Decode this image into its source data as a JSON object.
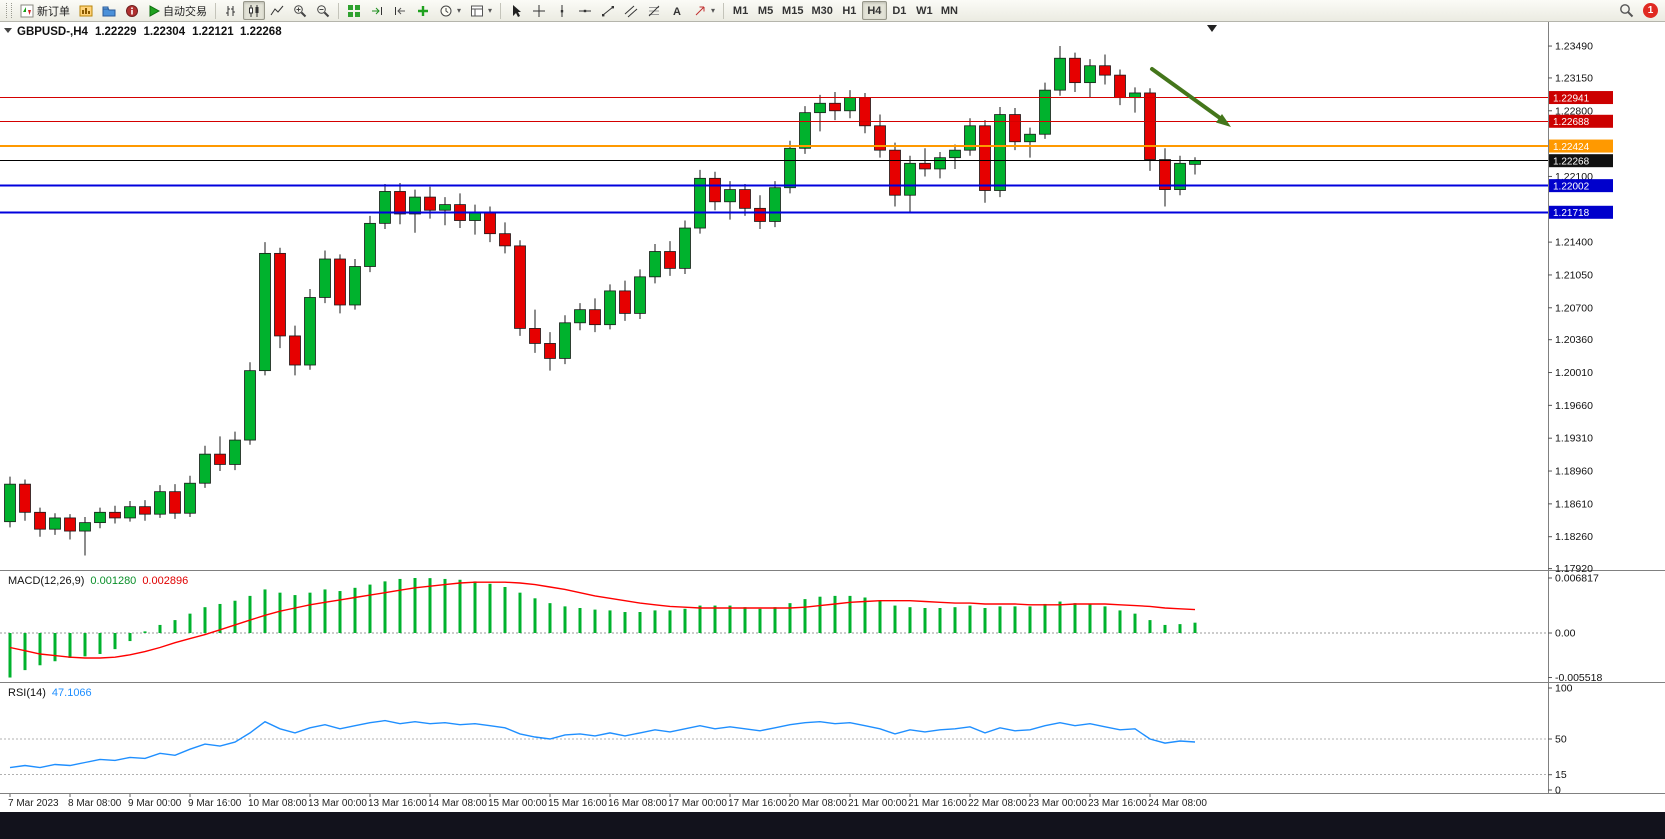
{
  "toolbar": {
    "new_order_label": "新订单",
    "autotrading_label": "自动交易",
    "timeframes": [
      "M1",
      "M5",
      "M15",
      "M30",
      "H1",
      "H4",
      "D1",
      "W1",
      "MN"
    ],
    "active_timeframe": "H4",
    "notification_count": "1"
  },
  "chart": {
    "symbol": "GBPUSD-,H4",
    "open": "1.22229",
    "high": "1.22304",
    "low": "1.22121",
    "close": "1.22268"
  },
  "chart_data": [
    {
      "type": "candlestick",
      "title": "GBPUSD-,H4",
      "colors": {
        "up": "#00b22d",
        "down": "#e60000",
        "outline": "#1a1a1a"
      },
      "price_axis": {
        "top_price": 1.23725,
        "bottom_price": 1.17905,
        "ticks": [
          "1.23490",
          "1.23150",
          "1.22800",
          "1.22100",
          "1.21400",
          "1.21050",
          "1.20700",
          "1.20360",
          "1.20010",
          "1.19660",
          "1.19310",
          "1.18960",
          "1.18610",
          "1.18260",
          "1.17920"
        ]
      },
      "hlines": [
        {
          "price": 1.22941,
          "label": "1.22941",
          "color": "#d40000",
          "width": 1,
          "tag_bg": "#cc0000"
        },
        {
          "price": 1.22688,
          "label": "1.22688",
          "color": "#d40000",
          "width": 1,
          "tag_bg": "#cc0000"
        },
        {
          "price": 1.22424,
          "label": "1.22424",
          "color": "#ff9900",
          "width": 2,
          "tag_bg": "#ff9900"
        },
        {
          "price": 1.22002,
          "label": "1.22002",
          "color": "#0000dd",
          "width": 2,
          "tag_bg": "#0000cc"
        },
        {
          "price": 1.21718,
          "label": "1.21718",
          "color": "#0000dd",
          "width": 2,
          "tag_bg": "#0000cc"
        }
      ],
      "bid_line": {
        "price": 1.22268,
        "label": "1.22268",
        "color": "#000000",
        "width": 1,
        "tag_bg": "#111111"
      },
      "trend_arrow": {
        "color": "#44761b"
      },
      "time_labels": [
        "7 Mar 2023",
        "8 Mar 08:00",
        "9 Mar 00:00",
        "9 Mar 16:00",
        "10 Mar 08:00",
        "13 Mar 00:00",
        "13 Mar 16:00",
        "14 Mar 08:00",
        "15 Mar 00:00",
        "15 Mar 16:00",
        "16 Mar 08:00",
        "17 Mar 00:00",
        "17 Mar 16:00",
        "20 Mar 08:00",
        "21 Mar 00:00",
        "21 Mar 16:00",
        "22 Mar 08:00",
        "23 Mar 00:00",
        "23 Mar 16:00",
        "24 Mar 08:00"
      ],
      "ohlc": [
        [
          1.1842,
          1.189,
          1.1836,
          1.1882
        ],
        [
          1.1882,
          1.1887,
          1.1843,
          1.1852
        ],
        [
          1.1852,
          1.1857,
          1.1826,
          1.1834
        ],
        [
          1.1834,
          1.1851,
          1.1828,
          1.1846
        ],
        [
          1.1846,
          1.185,
          1.1823,
          1.1832
        ],
        [
          1.1832,
          1.1847,
          1.1806,
          1.1841
        ],
        [
          1.1841,
          1.1857,
          1.1835,
          1.1852
        ],
        [
          1.1852,
          1.1859,
          1.184,
          1.1846
        ],
        [
          1.1846,
          1.1864,
          1.1842,
          1.1858
        ],
        [
          1.1858,
          1.1865,
          1.1843,
          1.185
        ],
        [
          1.185,
          1.1881,
          1.1846,
          1.1874
        ],
        [
          1.1874,
          1.1882,
          1.1845,
          1.1851
        ],
        [
          1.1851,
          1.1891,
          1.1847,
          1.1883
        ],
        [
          1.1883,
          1.1923,
          1.1878,
          1.1914
        ],
        [
          1.1914,
          1.1933,
          1.1896,
          1.1903
        ],
        [
          1.1903,
          1.1938,
          1.1897,
          1.1929
        ],
        [
          1.1929,
          1.2012,
          1.1924,
          1.2003
        ],
        [
          1.2003,
          1.214,
          1.1998,
          1.2128
        ],
        [
          1.2128,
          1.2134,
          1.2027,
          1.204
        ],
        [
          1.204,
          1.2051,
          1.1998,
          1.2009
        ],
        [
          1.2009,
          1.209,
          1.2004,
          1.2081
        ],
        [
          1.2081,
          1.2131,
          1.2075,
          1.2122
        ],
        [
          1.2122,
          1.2127,
          1.2064,
          1.2073
        ],
        [
          1.2073,
          1.2122,
          1.2068,
          1.2114
        ],
        [
          1.2114,
          1.2168,
          1.2108,
          1.216
        ],
        [
          1.216,
          1.2202,
          1.2154,
          1.2194
        ],
        [
          1.2194,
          1.2203,
          1.2159,
          1.217
        ],
        [
          1.217,
          1.2196,
          1.215,
          1.2188
        ],
        [
          1.2188,
          1.2199,
          1.2165,
          1.2174
        ],
        [
          1.2174,
          1.2188,
          1.2158,
          1.218
        ],
        [
          1.218,
          1.2192,
          1.2155,
          1.2163
        ],
        [
          1.2163,
          1.218,
          1.2148,
          1.2172
        ],
        [
          1.2172,
          1.2178,
          1.214,
          1.2149
        ],
        [
          1.2149,
          1.2161,
          1.2128,
          1.2136
        ],
        [
          1.2136,
          1.2142,
          1.204,
          1.2048
        ],
        [
          1.2048,
          1.2068,
          1.2022,
          1.2032
        ],
        [
          1.2032,
          1.2044,
          1.2003,
          1.2016
        ],
        [
          1.2016,
          1.2062,
          1.201,
          1.2054
        ],
        [
          1.2054,
          1.2075,
          1.2046,
          1.2068
        ],
        [
          1.2068,
          1.208,
          1.2044,
          1.2052
        ],
        [
          1.2052,
          1.2095,
          1.2047,
          1.2088
        ],
        [
          1.2088,
          1.2099,
          1.2056,
          1.2064
        ],
        [
          1.2064,
          1.2111,
          1.2058,
          1.2103
        ],
        [
          1.2103,
          1.2138,
          1.2096,
          1.213
        ],
        [
          1.213,
          1.2141,
          1.2104,
          1.2112
        ],
        [
          1.2112,
          1.2163,
          1.2106,
          1.2155
        ],
        [
          1.2155,
          1.2217,
          1.2149,
          1.2208
        ],
        [
          1.2208,
          1.2215,
          1.2174,
          1.2183
        ],
        [
          1.2183,
          1.2205,
          1.2164,
          1.2196
        ],
        [
          1.2196,
          1.2202,
          1.2168,
          1.2176
        ],
        [
          1.2176,
          1.219,
          1.2154,
          1.2162
        ],
        [
          1.2162,
          1.2205,
          1.2156,
          1.2198
        ],
        [
          1.2198,
          1.2248,
          1.2192,
          1.224
        ],
        [
          1.224,
          1.2285,
          1.2234,
          1.2278
        ],
        [
          1.2278,
          1.2297,
          1.2258,
          1.2288
        ],
        [
          1.2288,
          1.23,
          1.227,
          1.228
        ],
        [
          1.228,
          1.2302,
          1.2272,
          1.2294
        ],
        [
          1.2294,
          1.2299,
          1.2256,
          1.2264
        ],
        [
          1.2264,
          1.2276,
          1.223,
          1.2238
        ],
        [
          1.2238,
          1.2246,
          1.2178,
          1.219
        ],
        [
          1.219,
          1.2232,
          1.2172,
          1.2224
        ],
        [
          1.2224,
          1.224,
          1.221,
          1.2218
        ],
        [
          1.2218,
          1.2236,
          1.2208,
          1.223
        ],
        [
          1.223,
          1.2244,
          1.2218,
          1.2238
        ],
        [
          1.2238,
          1.2272,
          1.2232,
          1.2264
        ],
        [
          1.2264,
          1.227,
          1.2182,
          1.2195
        ],
        [
          1.2195,
          1.2284,
          1.2188,
          1.2276
        ],
        [
          1.2276,
          1.2283,
          1.2238,
          1.2247
        ],
        [
          1.2247,
          1.2262,
          1.223,
          1.2255
        ],
        [
          1.2255,
          1.231,
          1.225,
          1.2302
        ],
        [
          1.2302,
          1.2349,
          1.2296,
          1.2336
        ],
        [
          1.2336,
          1.2342,
          1.23,
          1.231
        ],
        [
          1.231,
          1.2335,
          1.2294,
          1.2328
        ],
        [
          1.2328,
          1.234,
          1.2308,
          1.2318
        ],
        [
          1.2318,
          1.2324,
          1.2286,
          1.2294
        ],
        [
          1.2294,
          1.2305,
          1.2278,
          1.2299
        ],
        [
          1.2299,
          1.2304,
          1.2216,
          1.2228
        ],
        [
          1.2228,
          1.224,
          1.2178,
          1.2196
        ],
        [
          1.2196,
          1.2232,
          1.219,
          1.2224
        ],
        [
          1.22229,
          1.22304,
          1.22121,
          1.22268
        ]
      ]
    },
    {
      "type": "bar",
      "name": "MACD",
      "label": "MACD(12,26,9)",
      "current_macd": "0.001280",
      "current_signal": "0.002896",
      "colors": {
        "histogram": "#00b22d",
        "signal": "#ff0000"
      },
      "axis_ticks": [
        {
          "value": 0.006817,
          "label": "0.006817"
        },
        {
          "value": 0,
          "label": "0.00"
        },
        {
          "value": -0.005518,
          "label": "-0.005518"
        }
      ],
      "histogram": [
        -0.005518,
        -0.0046,
        -0.004,
        -0.0035,
        -0.0031,
        -0.0029,
        -0.0026,
        -0.002,
        -0.001,
        0.0002,
        0.001,
        0.0016,
        0.0024,
        0.0032,
        0.0036,
        0.004,
        0.0046,
        0.0054,
        0.005,
        0.0047,
        0.005,
        0.0054,
        0.0052,
        0.0056,
        0.006,
        0.0064,
        0.0067,
        0.006817,
        0.0068,
        0.0067,
        0.0066,
        0.0064,
        0.0061,
        0.0057,
        0.005,
        0.0043,
        0.0037,
        0.0033,
        0.0031,
        0.0029,
        0.0028,
        0.0026,
        0.0026,
        0.0028,
        0.0028,
        0.003,
        0.0034,
        0.0034,
        0.0034,
        0.0032,
        0.003,
        0.0032,
        0.0037,
        0.0042,
        0.0045,
        0.0046,
        0.0046,
        0.0044,
        0.004,
        0.0034,
        0.0032,
        0.0031,
        0.0031,
        0.0032,
        0.0034,
        0.0031,
        0.0033,
        0.0033,
        0.0033,
        0.0036,
        0.0039,
        0.0037,
        0.0036,
        0.0033,
        0.0028,
        0.0024,
        0.0016,
        0.001,
        0.0011,
        0.00128
      ],
      "signal": [
        -0.0018,
        -0.0022,
        -0.0026,
        -0.0028,
        -0.003,
        -0.0031,
        -0.0031,
        -0.003,
        -0.0027,
        -0.0023,
        -0.0018,
        -0.0012,
        -0.0007,
        -0.0002,
        0.0004,
        0.001,
        0.0016,
        0.0022,
        0.0027,
        0.0031,
        0.0035,
        0.0038,
        0.0041,
        0.0044,
        0.0047,
        0.005,
        0.0053,
        0.0056,
        0.0058,
        0.006,
        0.0062,
        0.0063,
        0.0063,
        0.0063,
        0.0062,
        0.006,
        0.0057,
        0.0054,
        0.005,
        0.0046,
        0.0043,
        0.004,
        0.0037,
        0.0035,
        0.0033,
        0.0032,
        0.0031,
        0.0031,
        0.0031,
        0.0031,
        0.0031,
        0.0031,
        0.0031,
        0.0032,
        0.0034,
        0.0036,
        0.0038,
        0.0039,
        0.004,
        0.004,
        0.004,
        0.0039,
        0.0038,
        0.0037,
        0.0037,
        0.0036,
        0.0036,
        0.0036,
        0.0035,
        0.0035,
        0.0035,
        0.0036,
        0.0036,
        0.0036,
        0.0035,
        0.0034,
        0.0033,
        0.0031,
        0.003,
        0.002896
      ]
    },
    {
      "type": "line",
      "name": "RSI",
      "label": "RSI(14)",
      "current_value": "47.1066",
      "color": "#1f8fff",
      "range": [
        0,
        100
      ],
      "levels": [
        50,
        15
      ],
      "axis_ticks": [
        {
          "value": 100,
          "label": "100"
        },
        {
          "value": 50,
          "label": "50"
        },
        {
          "value": 15,
          "label": "15"
        },
        {
          "value": 0,
          "label": "0"
        }
      ],
      "values": [
        22,
        24,
        22,
        25,
        24,
        27,
        30,
        29,
        32,
        31,
        36,
        34,
        40,
        45,
        43,
        47,
        56,
        67,
        60,
        56,
        61,
        64,
        60,
        63,
        66,
        68,
        65,
        67,
        65,
        66,
        64,
        65,
        63,
        61,
        55,
        52,
        50,
        54,
        55,
        53,
        56,
        53,
        56,
        59,
        57,
        60,
        63,
        60,
        62,
        60,
        58,
        61,
        64,
        66,
        67,
        65,
        66,
        63,
        60,
        55,
        59,
        57,
        59,
        60,
        62,
        56,
        61,
        58,
        59,
        63,
        66,
        63,
        65,
        62,
        59,
        60,
        50,
        46,
        48,
        47.1066
      ]
    }
  ]
}
